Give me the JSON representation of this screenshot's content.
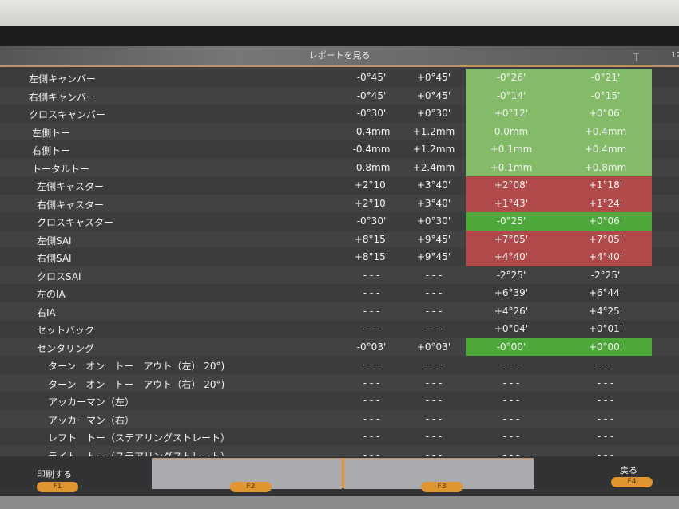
{
  "title": "レポートを見る",
  "corner_number": "12",
  "colors": {
    "ok_light": "#84bb68",
    "ok_bright": "#4ea93a",
    "out_of_range": "#b04a4a"
  },
  "rows": [
    {
      "name": "左側キャンバー",
      "min": "-0°45'",
      "max": "+0°45'",
      "a1": "-0°26'",
      "a2": "-0°21'",
      "status": "g"
    },
    {
      "name": "右側キャンバー",
      "min": "-0°45'",
      "max": "+0°45'",
      "a1": "-0°14'",
      "a2": "-0°15'",
      "status": "g"
    },
    {
      "name": "クロスキャンバー",
      "min": "-0°30'",
      "max": "+0°30'",
      "a1": "+0°12'",
      "a2": "+0°06'",
      "status": "g"
    },
    {
      "name": "左側トー",
      "min": "-0.4mm",
      "max": "+1.2mm",
      "a1": "0.0mm",
      "a2": "+0.4mm",
      "status": "g"
    },
    {
      "name": "右側トー",
      "min": "-0.4mm",
      "max": "+1.2mm",
      "a1": "+0.1mm",
      "a2": "+0.4mm",
      "status": "g"
    },
    {
      "name": "トータルトー",
      "min": "-0.8mm",
      "max": "+2.4mm",
      "a1": "+0.1mm",
      "a2": "+0.8mm",
      "status": "g"
    },
    {
      "name": "左側キャスター",
      "min": "+2°10'",
      "max": "+3°40'",
      "a1": "+2°08'",
      "a2": "+1°18'",
      "status": "r"
    },
    {
      "name": "右側キャスター",
      "min": "+2°10'",
      "max": "+3°40'",
      "a1": "+1°43'",
      "a2": "+1°24'",
      "status": "r"
    },
    {
      "name": "クロスキャスター",
      "min": "-0°30'",
      "max": "+0°30'",
      "a1": "-0°25'",
      "a2": "+0°06'",
      "status": "gb"
    },
    {
      "name": "左側SAI",
      "min": "+8°15'",
      "max": "+9°45'",
      "a1": "+7°05'",
      "a2": "+7°05'",
      "status": "r"
    },
    {
      "name": "右側SAI",
      "min": "+8°15'",
      "max": "+9°45'",
      "a1": "+4°40'",
      "a2": "+4°40'",
      "status": "r"
    },
    {
      "name": "クロスSAI",
      "min": "- - -",
      "max": "- - -",
      "a1": "-2°25'",
      "a2": "-2°25'",
      "status": ""
    },
    {
      "name": "左のIA",
      "min": "- - -",
      "max": "- - -",
      "a1": "+6°39'",
      "a2": "+6°44'",
      "status": ""
    },
    {
      "name": "右IA",
      "min": "- - -",
      "max": "- - -",
      "a1": "+4°26'",
      "a2": "+4°25'",
      "status": ""
    },
    {
      "name": "セットバック",
      "min": "- - -",
      "max": "- - -",
      "a1": "+0°04'",
      "a2": "+0°01'",
      "status": ""
    },
    {
      "name": "センタリング",
      "min": "-0°03'",
      "max": "+0°03'",
      "a1": "-0°00'",
      "a2": "+0°00'",
      "status": "gb"
    },
    {
      "name": "ターン　オン　トー　アウト（左） 20°)",
      "min": "- - -",
      "max": "- - -",
      "a1": "- - -",
      "a2": "- - -",
      "status": ""
    },
    {
      "name": "ターン　オン　トー　アウト（右） 20°)",
      "min": "- - -",
      "max": "- - -",
      "a1": "- - -",
      "a2": "- - -",
      "status": ""
    },
    {
      "name": "アッカーマン（左）",
      "min": "- - -",
      "max": "- - -",
      "a1": "- - -",
      "a2": "- - -",
      "status": ""
    },
    {
      "name": "アッカーマン（右）",
      "min": "- - -",
      "max": "- - -",
      "a1": "- - -",
      "a2": "- - -",
      "status": ""
    },
    {
      "name": "レフト　トー（ステアリングストレート）",
      "min": "- - -",
      "max": "- - -",
      "a1": "- - -",
      "a2": "- - -",
      "status": ""
    },
    {
      "name": "ライト　トー（ステアリングストレート）",
      "min": "- - -",
      "max": "- - -",
      "a1": "- - -",
      "a2": "- - -",
      "status": ""
    }
  ],
  "footer": {
    "f1_label": "印刷する",
    "f4_label": "戻る",
    "keys": [
      "F1",
      "F2",
      "F3",
      "F4"
    ]
  }
}
